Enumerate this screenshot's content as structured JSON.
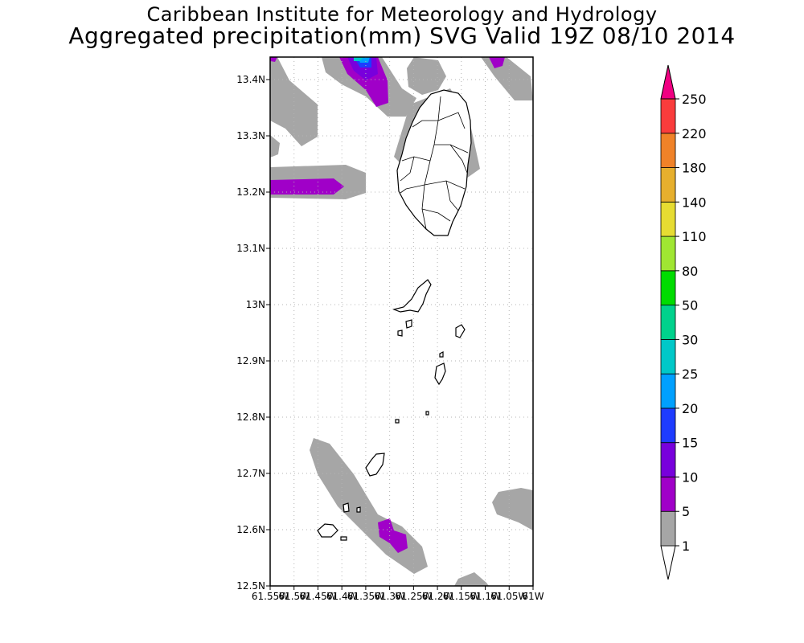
{
  "header": {
    "title": "Caribbean Institute for Meteorology and Hydrology",
    "subtitle": "Aggregated precipitation(mm) SVG Valid 19Z 08/10 2014"
  },
  "map": {
    "lat_range": [
      12.5,
      13.44
    ],
    "lon_range": [
      -61.55,
      -61.0
    ],
    "lat_ticks": [
      {
        "value": 13.4,
        "label": "13.4N"
      },
      {
        "value": 13.3,
        "label": "13.3N"
      },
      {
        "value": 13.2,
        "label": "13.2N"
      },
      {
        "value": 13.1,
        "label": "13.1N"
      },
      {
        "value": 13.0,
        "label": "13N"
      },
      {
        "value": 12.9,
        "label": "12.9N"
      },
      {
        "value": 12.8,
        "label": "12.8N"
      },
      {
        "value": 12.7,
        "label": "12.7N"
      },
      {
        "value": 12.6,
        "label": "12.6N"
      },
      {
        "value": 12.5,
        "label": "12.5N"
      }
    ],
    "lon_ticks": [
      {
        "value": -61.55,
        "label": "61.55W"
      },
      {
        "value": -61.5,
        "label": "61.5W"
      },
      {
        "value": -61.45,
        "label": "61.45W"
      },
      {
        "value": -61.4,
        "label": "61.4W"
      },
      {
        "value": -61.35,
        "label": "61.35W"
      },
      {
        "value": -61.3,
        "label": "61.3W"
      },
      {
        "value": -61.25,
        "label": "61.25W"
      },
      {
        "value": -61.2,
        "label": "61.2W"
      },
      {
        "value": -61.15,
        "label": "61.15W"
      },
      {
        "value": -61.1,
        "label": "61.1W"
      },
      {
        "value": -61.05,
        "label": "61.05W"
      },
      {
        "value": -61.0,
        "label": "61W"
      }
    ]
  },
  "colorbar": {
    "levels": [
      {
        "label": "1",
        "color": "#ffffff"
      },
      {
        "label": "5",
        "color": "#a6a6a6"
      },
      {
        "label": "10",
        "color": "#a000c8"
      },
      {
        "label": "15",
        "color": "#7800dc"
      },
      {
        "label": "20",
        "color": "#1e3cff"
      },
      {
        "label": "25",
        "color": "#00a0ff"
      },
      {
        "label": "30",
        "color": "#00c8c8"
      },
      {
        "label": "50",
        "color": "#00d28c"
      },
      {
        "label": "80",
        "color": "#00dc00"
      },
      {
        "label": "110",
        "color": "#a0e632"
      },
      {
        "label": "140",
        "color": "#e6dc32"
      },
      {
        "label": "180",
        "color": "#e6af2d"
      },
      {
        "label": "220",
        "color": "#f08228"
      },
      {
        "label": "250",
        "color": "#fa3c3c"
      }
    ],
    "top_arrow_color": "#f00082"
  }
}
